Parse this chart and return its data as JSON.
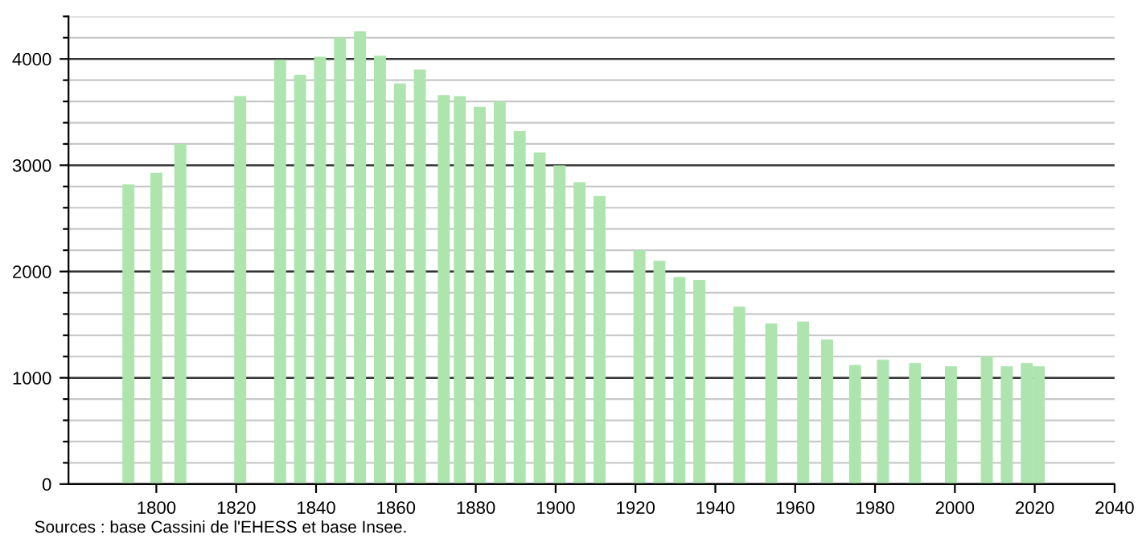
{
  "chart_data": {
    "type": "bar",
    "x": [
      1793,
      1800,
      1806,
      1821,
      1831,
      1836,
      1841,
      1846,
      1851,
      1856,
      1861,
      1866,
      1872,
      1876,
      1881,
      1886,
      1891,
      1896,
      1901,
      1906,
      1911,
      1921,
      1926,
      1931,
      1936,
      1946,
      1954,
      1962,
      1968,
      1975,
      1982,
      1990,
      1999,
      2008,
      2013,
      2018,
      2021
    ],
    "values": [
      2820,
      2930,
      3200,
      3650,
      3990,
      3850,
      4020,
      4200,
      4260,
      4030,
      3770,
      3900,
      3660,
      3650,
      3550,
      3600,
      3320,
      3120,
      3000,
      2840,
      2710,
      2200,
      2100,
      1950,
      1920,
      1670,
      1510,
      1530,
      1360,
      1120,
      1170,
      1140,
      1110,
      1200,
      1110,
      1140,
      1110
    ],
    "color": "#aee4ae",
    "xlim": [
      1778,
      2040
    ],
    "xticks": [
      1800,
      1820,
      1840,
      1860,
      1880,
      1900,
      1920,
      1940,
      1960,
      1980,
      2000,
      2020,
      2040
    ],
    "ylim": [
      0,
      4400
    ],
    "yticks": [
      0,
      {
        "value": 200,
        "label": null
      },
      {
        "value": 400,
        "label": null
      },
      {
        "value": 600,
        "label": null
      },
      {
        "value": 800,
        "label": null
      },
      1000,
      {
        "value": 1200,
        "label": null
      },
      {
        "value": 1400,
        "label": null
      },
      {
        "value": 1600,
        "label": null
      },
      {
        "value": 1800,
        "label": null
      },
      2000,
      {
        "value": 2200,
        "label": null
      },
      {
        "value": 2400,
        "label": null
      },
      {
        "value": 2600,
        "label": null
      },
      {
        "value": 2800,
        "label": null
      },
      3000,
      {
        "value": 3200,
        "label": null
      },
      {
        "value": 3400,
        "label": null
      },
      {
        "value": 3600,
        "label": null
      },
      {
        "value": 3800,
        "label": null
      },
      4000,
      {
        "value": 4200,
        "label": null
      },
      {
        "value": 4400,
        "label": null
      }
    ],
    "grid": "y",
    "annotations": [
      "Sources : base Cassini de l'EHESS et base Insee."
    ]
  }
}
